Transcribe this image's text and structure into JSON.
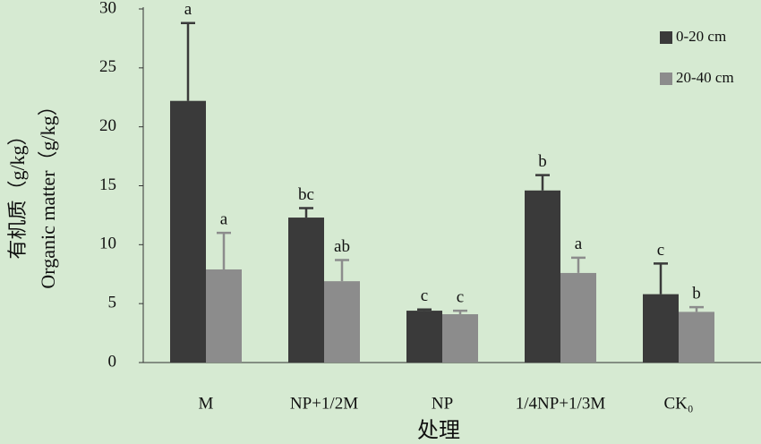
{
  "chart_data": {
    "type": "bar",
    "y_label_lines": [
      "有机质（g/kg）",
      "Organic matter（g/kg）"
    ],
    "x_label": "处理",
    "categories": [
      "M",
      "NP+1/2M",
      "NP",
      "1/4NP+1/3M",
      "CK₀"
    ],
    "series": [
      {
        "name": "0-20 cm",
        "color": "#3a3a3a",
        "values": [
          22.2,
          12.3,
          4.4,
          14.6,
          5.8
        ],
        "errors": [
          6.6,
          0.8,
          0.1,
          1.3,
          2.6
        ],
        "annotations": [
          "a",
          "bc",
          "c",
          "b",
          "c"
        ]
      },
      {
        "name": "20-40 cm",
        "color": "#8c8c8c",
        "values": [
          7.9,
          6.9,
          4.1,
          7.6,
          4.3
        ],
        "errors": [
          3.1,
          1.8,
          0.3,
          1.3,
          0.4
        ],
        "annotations": [
          "a",
          "ab",
          "c",
          "a",
          "b"
        ]
      }
    ],
    "ylim": [
      0,
      30
    ],
    "yticks": [
      0,
      5,
      10,
      15,
      20,
      25,
      30
    ],
    "legend": "upper-right"
  }
}
